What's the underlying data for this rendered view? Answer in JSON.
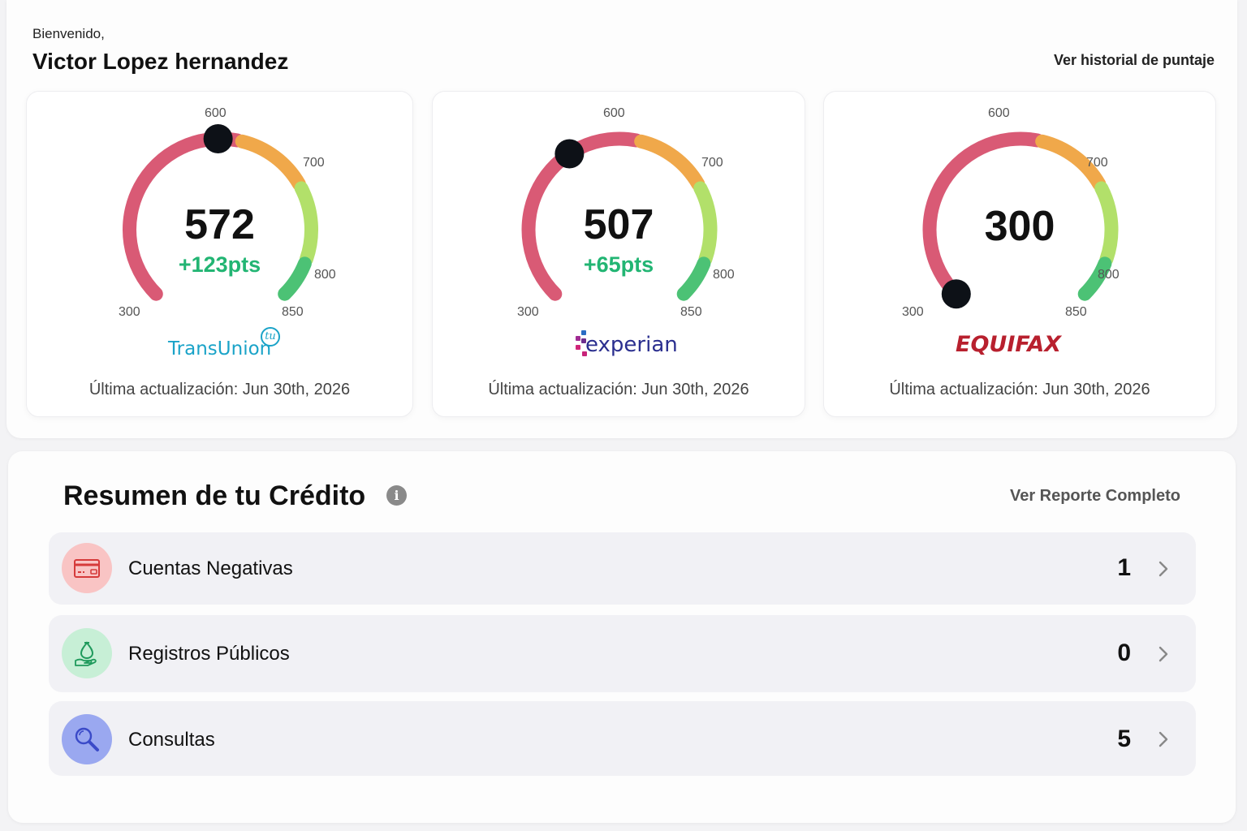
{
  "header": {
    "greeting": "Bienvenido,",
    "user_name": "Victor Lopez hernandez",
    "history_link": "Ver historial de puntaje"
  },
  "bureaus": [
    {
      "name": "TransUnion",
      "logo_text": "TransUnion",
      "logo_badge": "tu",
      "score": "572",
      "score_value": 572,
      "delta": "+123pts",
      "updated": "Última actualización: Jun 30th, 2026",
      "logo_color": "#1aa3c8"
    },
    {
      "name": "Experian",
      "logo_text": "experian",
      "score": "507",
      "score_value": 507,
      "delta": "+65pts",
      "updated": "Última actualización: Jun 30th, 2026",
      "logo_color": "#2b2f8f"
    },
    {
      "name": "Equifax",
      "logo_text": "EQUIFAX",
      "score": "300",
      "score_value": 300,
      "delta": "",
      "updated": "Última actualización: Jun 30th, 2026",
      "logo_color": "#b8202e"
    }
  ],
  "gauge": {
    "ticks": [
      "300",
      "600",
      "700",
      "800",
      "850"
    ],
    "range": [
      300,
      850
    ],
    "segment_colors": {
      "poor": "#d95a75",
      "fair": "#f0a84a",
      "good": "#b2e06a",
      "excellent": "#4cc275"
    }
  },
  "summary": {
    "title": "Resumen de tu Crédito",
    "info_icon": "info-icon",
    "report_link": "Ver Reporte Completo",
    "items": [
      {
        "label": "Cuentas Negativas",
        "count": "1",
        "icon": "credit-card-icon",
        "icon_bg": "#f9c4c4",
        "icon_color": "#d63a3a"
      },
      {
        "label": "Registros Públicos",
        "count": "0",
        "icon": "hand-bag-icon",
        "icon_bg": "#c7efd6",
        "icon_color": "#1f9a5c"
      },
      {
        "label": "Consultas",
        "count": "5",
        "icon": "search-icon",
        "icon_bg": "#9aa8f0",
        "icon_color": "#3a4ac8"
      }
    ]
  }
}
